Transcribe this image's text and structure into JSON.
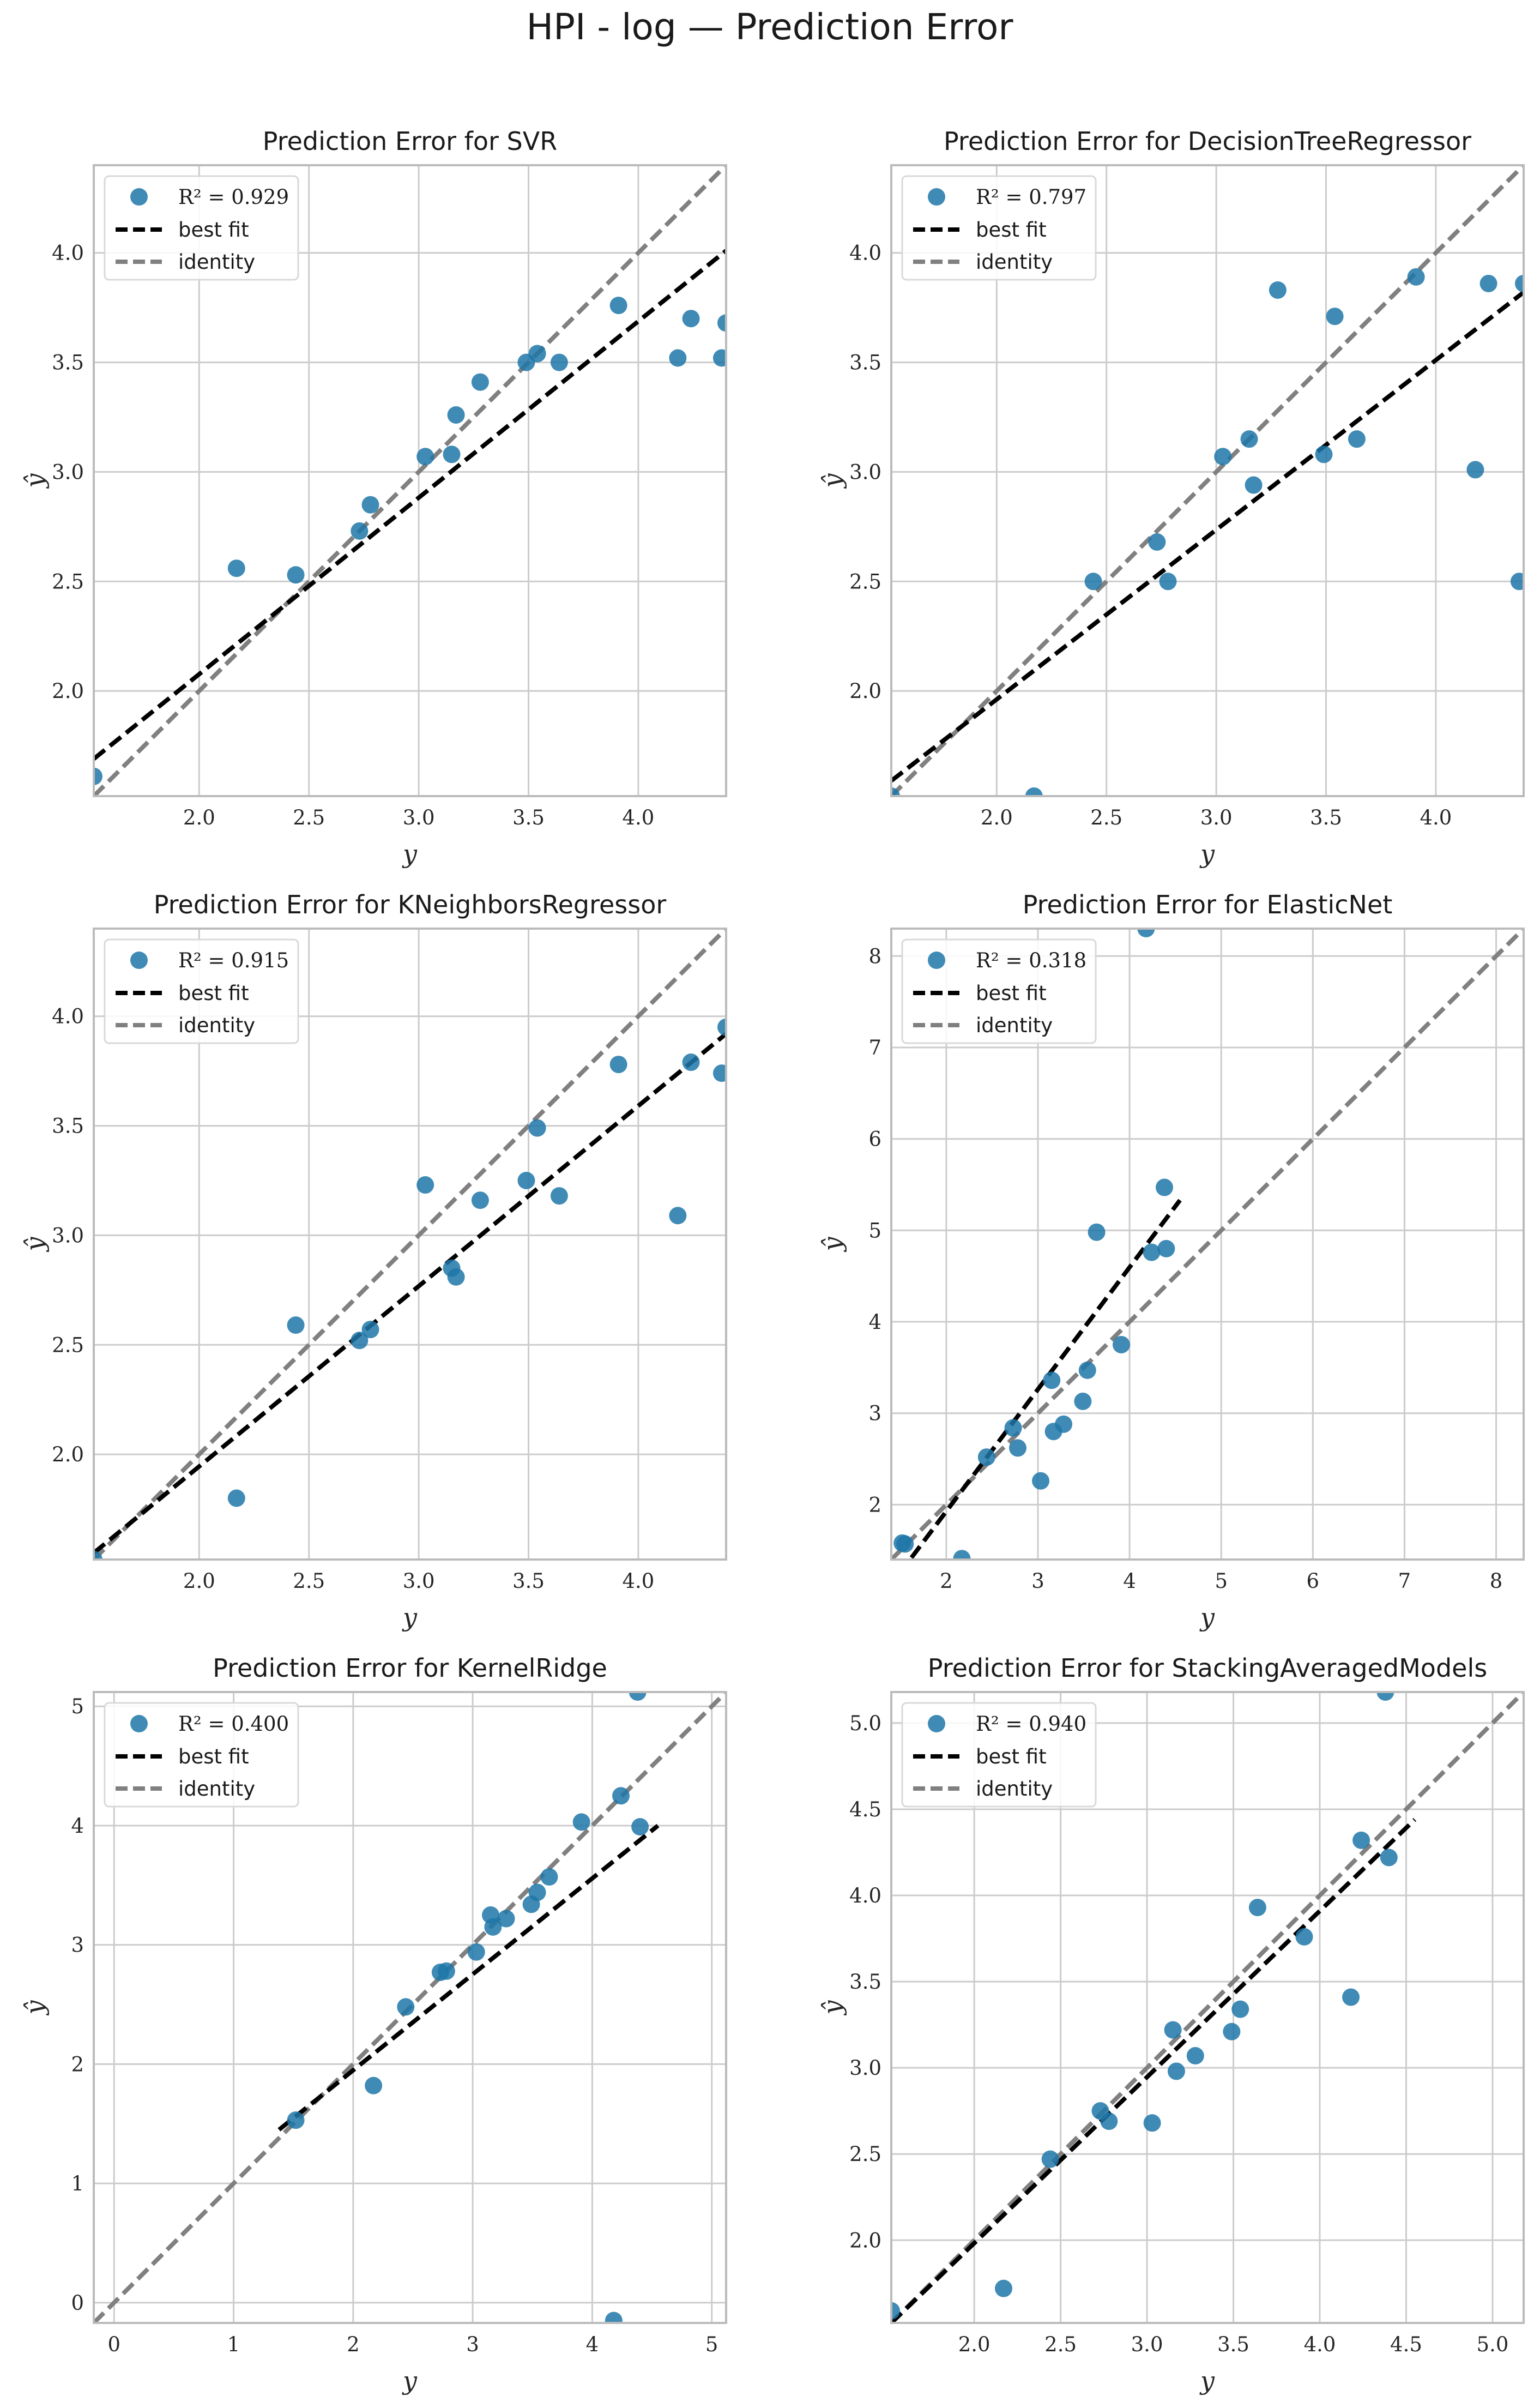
{
  "figure_title": "HPI - log — Prediction Error",
  "colors": {
    "points": "#1f77a8",
    "best_fit": "#000000",
    "identity": "#808080",
    "grid": "#cccccc",
    "frame": "#bbbbbb"
  },
  "chart_data": [
    {
      "type": "scatter",
      "title": "Prediction Error for SVR",
      "xlabel": "y",
      "ylabel": "ŷ",
      "xlim": [
        1.52,
        4.4
      ],
      "ylim": [
        1.52,
        4.4
      ],
      "xticks": [
        2.0,
        2.5,
        3.0,
        3.5,
        4.0
      ],
      "yticks": [
        2.0,
        2.5,
        3.0,
        3.5,
        4.0
      ],
      "tick_labels": [
        "2.0",
        "2.5",
        "3.0",
        "3.5",
        "4.0"
      ],
      "xtick_labels": [
        "2.0",
        "2.5",
        "3.0",
        "3.5",
        "4.0"
      ],
      "ytick_labels": [
        "2.0",
        "2.5",
        "3.0",
        "3.5",
        "4.0"
      ],
      "legend": {
        "r2": "R² = 0.929",
        "best_fit": "best fit",
        "identity": "identity",
        "placement": "upper-left"
      },
      "best_fit": [
        [
          1.52,
          1.69
        ],
        [
          4.4,
          4.01
        ]
      ],
      "identity": [
        [
          1.52,
          1.52
        ],
        [
          4.4,
          4.4
        ]
      ],
      "points": [
        [
          1.52,
          1.61
        ],
        [
          2.17,
          2.56
        ],
        [
          2.44,
          2.53
        ],
        [
          2.73,
          2.73
        ],
        [
          2.78,
          2.85
        ],
        [
          3.03,
          3.07
        ],
        [
          3.15,
          3.08
        ],
        [
          3.17,
          3.26
        ],
        [
          3.28,
          3.41
        ],
        [
          3.49,
          3.5
        ],
        [
          3.54,
          3.54
        ],
        [
          3.64,
          3.5
        ],
        [
          3.91,
          3.76
        ],
        [
          4.18,
          3.52
        ],
        [
          4.24,
          3.7
        ],
        [
          4.38,
          3.52
        ],
        [
          4.4,
          3.68
        ]
      ]
    },
    {
      "type": "scatter",
      "title": "Prediction Error for DecisionTreeRegressor",
      "xlabel": "y",
      "ylabel": "ŷ",
      "xlim": [
        1.52,
        4.4
      ],
      "ylim": [
        1.52,
        4.4
      ],
      "xticks": [
        2.0,
        2.5,
        3.0,
        3.5,
        4.0
      ],
      "yticks": [
        2.0,
        2.5,
        3.0,
        3.5,
        4.0
      ],
      "xtick_labels": [
        "2.0",
        "2.5",
        "3.0",
        "3.5",
        "4.0"
      ],
      "ytick_labels": [
        "2.0",
        "2.5",
        "3.0",
        "3.5",
        "4.0"
      ],
      "legend": {
        "r2": "R² = 0.797",
        "best_fit": "best fit",
        "identity": "identity",
        "placement": "upper-left"
      },
      "best_fit": [
        [
          1.52,
          1.59
        ],
        [
          4.4,
          3.82
        ]
      ],
      "identity": [
        [
          1.52,
          1.52
        ],
        [
          4.4,
          4.4
        ]
      ],
      "points": [
        [
          1.52,
          1.52
        ],
        [
          2.17,
          1.52
        ],
        [
          2.44,
          2.5
        ],
        [
          2.73,
          2.68
        ],
        [
          2.78,
          2.5
        ],
        [
          3.03,
          3.07
        ],
        [
          3.15,
          3.15
        ],
        [
          3.17,
          2.94
        ],
        [
          3.28,
          3.83
        ],
        [
          3.49,
          3.08
        ],
        [
          3.54,
          3.71
        ],
        [
          3.64,
          3.15
        ],
        [
          3.91,
          3.89
        ],
        [
          4.18,
          3.01
        ],
        [
          4.24,
          3.86
        ],
        [
          4.38,
          2.5
        ],
        [
          4.4,
          3.86
        ]
      ]
    },
    {
      "type": "scatter",
      "title": "Prediction Error for KNeighborsRegressor",
      "xlabel": "y",
      "ylabel": "ŷ",
      "xlim": [
        1.52,
        4.4
      ],
      "ylim": [
        1.52,
        4.4
      ],
      "xticks": [
        2.0,
        2.5,
        3.0,
        3.5,
        4.0
      ],
      "yticks": [
        2.0,
        2.5,
        3.0,
        3.5,
        4.0
      ],
      "xtick_labels": [
        "2.0",
        "2.5",
        "3.0",
        "3.5",
        "4.0"
      ],
      "ytick_labels": [
        "2.0",
        "2.5",
        "3.0",
        "3.5",
        "4.0"
      ],
      "legend": {
        "r2": "R² = 0.915",
        "best_fit": "best fit",
        "identity": "identity",
        "placement": "upper-left"
      },
      "best_fit": [
        [
          1.52,
          1.55
        ],
        [
          4.4,
          3.92
        ]
      ],
      "identity": [
        [
          1.52,
          1.52
        ],
        [
          4.4,
          4.4
        ]
      ],
      "points": [
        [
          1.52,
          1.52
        ],
        [
          2.17,
          1.8
        ],
        [
          2.44,
          2.59
        ],
        [
          2.73,
          2.52
        ],
        [
          2.78,
          2.57
        ],
        [
          3.03,
          3.23
        ],
        [
          3.15,
          2.85
        ],
        [
          3.17,
          2.81
        ],
        [
          3.28,
          3.16
        ],
        [
          3.49,
          3.25
        ],
        [
          3.54,
          3.49
        ],
        [
          3.64,
          3.18
        ],
        [
          3.91,
          3.78
        ],
        [
          4.18,
          3.09
        ],
        [
          4.24,
          3.79
        ],
        [
          4.38,
          3.74
        ],
        [
          4.4,
          3.95
        ]
      ]
    },
    {
      "type": "scatter",
      "title": "Prediction Error for ElasticNet",
      "xlabel": "y",
      "ylabel": "ŷ",
      "xlim": [
        1.4,
        8.3
      ],
      "ylim": [
        1.4,
        8.3
      ],
      "xticks": [
        2,
        3,
        4,
        5,
        6,
        7,
        8
      ],
      "yticks": [
        2,
        3,
        4,
        5,
        6,
        7,
        8
      ],
      "xtick_labels": [
        "2",
        "3",
        "4",
        "5",
        "6",
        "7",
        "8"
      ],
      "ytick_labels": [
        "2",
        "3",
        "4",
        "5",
        "6",
        "7",
        "8"
      ],
      "legend": {
        "r2": "R² = 0.318",
        "best_fit": "best fit",
        "identity": "identity",
        "placement": "upper-left"
      },
      "best_fit": [
        [
          1.62,
          1.42
        ],
        [
          4.55,
          5.33
        ]
      ],
      "identity": [
        [
          1.4,
          1.4
        ],
        [
          8.3,
          8.3
        ]
      ],
      "points": [
        [
          1.52,
          1.58
        ],
        [
          1.55,
          1.57
        ],
        [
          2.17,
          1.41
        ],
        [
          2.44,
          2.52
        ],
        [
          2.73,
          2.84
        ],
        [
          2.78,
          2.62
        ],
        [
          3.03,
          2.26
        ],
        [
          3.15,
          3.36
        ],
        [
          3.17,
          2.8
        ],
        [
          3.28,
          2.88
        ],
        [
          3.49,
          3.13
        ],
        [
          3.54,
          3.47
        ],
        [
          3.64,
          4.98
        ],
        [
          3.91,
          3.75
        ],
        [
          4.18,
          8.3
        ],
        [
          4.24,
          4.76
        ],
        [
          4.38,
          5.47
        ],
        [
          4.4,
          4.8
        ]
      ]
    },
    {
      "type": "scatter",
      "title": "Prediction Error for KernelRidge",
      "xlabel": "y",
      "ylabel": "ŷ",
      "xlim": [
        -0.17,
        5.12
      ],
      "ylim": [
        -0.17,
        5.12
      ],
      "xticks": [
        0,
        1,
        2,
        3,
        4,
        5
      ],
      "yticks": [
        0,
        1,
        2,
        3,
        4,
        5
      ],
      "xtick_labels": [
        "0",
        "1",
        "2",
        "3",
        "4",
        "5"
      ],
      "ytick_labels": [
        "0",
        "1",
        "2",
        "3",
        "4",
        "5"
      ],
      "legend": {
        "r2": "R² = 0.400",
        "best_fit": "best fit",
        "identity": "identity",
        "placement": "upper-left"
      },
      "best_fit": [
        [
          1.38,
          1.45
        ],
        [
          4.55,
          4.0
        ]
      ],
      "identity": [
        [
          -0.17,
          -0.17
        ],
        [
          5.12,
          5.12
        ]
      ],
      "points": [
        [
          1.52,
          1.53
        ],
        [
          2.17,
          1.82
        ],
        [
          2.44,
          2.48
        ],
        [
          2.73,
          2.77
        ],
        [
          2.78,
          2.78
        ],
        [
          3.03,
          2.94
        ],
        [
          3.15,
          3.25
        ],
        [
          3.17,
          3.15
        ],
        [
          3.28,
          3.22
        ],
        [
          3.49,
          3.34
        ],
        [
          3.54,
          3.44
        ],
        [
          3.64,
          3.57
        ],
        [
          3.91,
          4.03
        ],
        [
          4.18,
          -0.15
        ],
        [
          4.24,
          4.25
        ],
        [
          4.38,
          5.12
        ],
        [
          4.4,
          3.99
        ]
      ]
    },
    {
      "type": "scatter",
      "title": "Prediction Error for StackingAveragedModels",
      "xlabel": "y",
      "ylabel": "ŷ",
      "xlim": [
        1.52,
        5.18
      ],
      "ylim": [
        1.52,
        5.18
      ],
      "xticks": [
        2.0,
        2.5,
        3.0,
        3.5,
        4.0,
        4.5,
        5.0
      ],
      "yticks": [
        2.0,
        2.5,
        3.0,
        3.5,
        4.0,
        4.5,
        5.0
      ],
      "xtick_labels": [
        "2.0",
        "2.5",
        "3.0",
        "3.5",
        "4.0",
        "4.5",
        "5.0"
      ],
      "ytick_labels": [
        "2.0",
        "2.5",
        "3.0",
        "3.5",
        "4.0",
        "4.5",
        "5.0"
      ],
      "legend": {
        "r2": "R² = 0.940",
        "best_fit": "best fit",
        "identity": "identity",
        "placement": "upper-left"
      },
      "best_fit": [
        [
          1.52,
          1.52
        ],
        [
          4.55,
          4.44
        ]
      ],
      "identity": [
        [
          1.52,
          1.52
        ],
        [
          5.18,
          5.18
        ]
      ],
      "points": [
        [
          1.52,
          1.59
        ],
        [
          2.17,
          1.72
        ],
        [
          2.44,
          2.47
        ],
        [
          2.73,
          2.75
        ],
        [
          2.78,
          2.69
        ],
        [
          3.03,
          2.68
        ],
        [
          3.15,
          3.22
        ],
        [
          3.17,
          2.98
        ],
        [
          3.28,
          3.07
        ],
        [
          3.49,
          3.21
        ],
        [
          3.54,
          3.34
        ],
        [
          3.64,
          3.93
        ],
        [
          3.91,
          3.76
        ],
        [
          4.18,
          3.41
        ],
        [
          4.24,
          4.32
        ],
        [
          4.38,
          5.18
        ],
        [
          4.4,
          4.22
        ]
      ]
    }
  ]
}
